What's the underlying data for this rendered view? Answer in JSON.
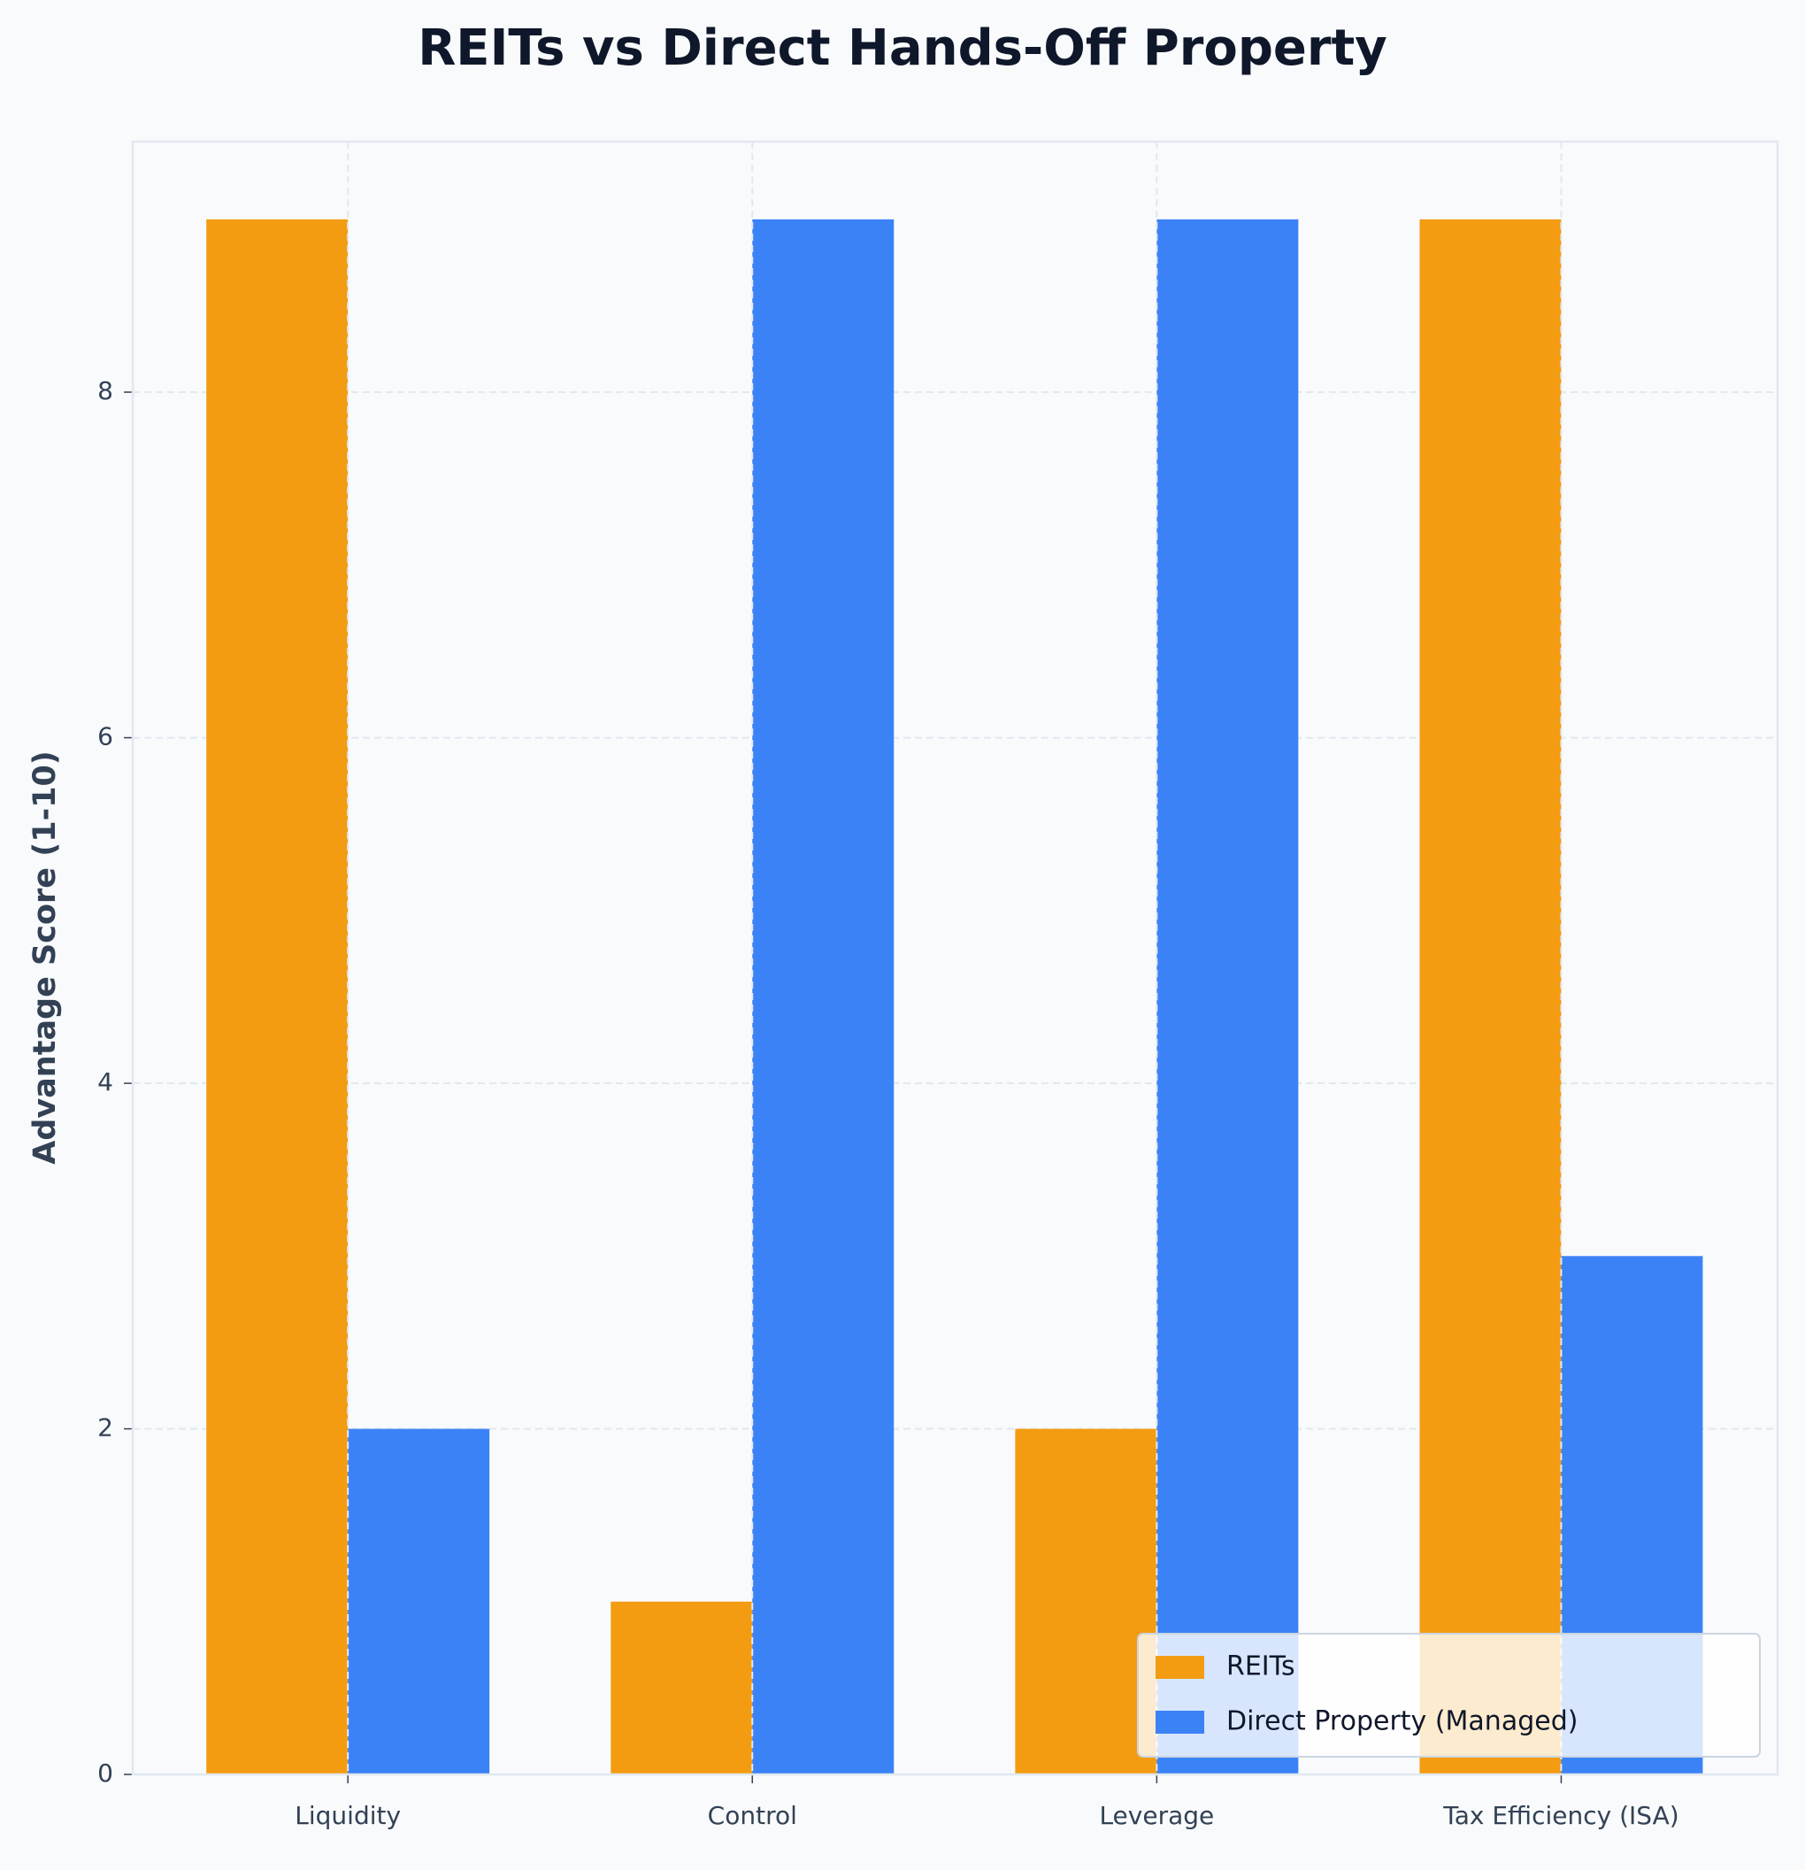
{
  "chart_data": {
    "type": "bar",
    "title": "REITs vs Direct Hands-Off Property",
    "y_label": "Advantage Score (1-10)",
    "categories": [
      "Liquidity",
      "Control",
      "Leverage",
      "Tax Efficiency (ISA)"
    ],
    "series": [
      {
        "name": "REITs",
        "color": "#f39c12",
        "values": [
          9,
          1,
          2,
          9
        ]
      },
      {
        "name": "Direct Property (Managed)",
        "color": "#3b82f6",
        "values": [
          2,
          9,
          9,
          3
        ]
      }
    ],
    "ylim": [
      0,
      9.45
    ],
    "yticks": [
      0,
      2,
      4,
      6,
      8
    ],
    "grid": true,
    "legend": "lower right"
  }
}
